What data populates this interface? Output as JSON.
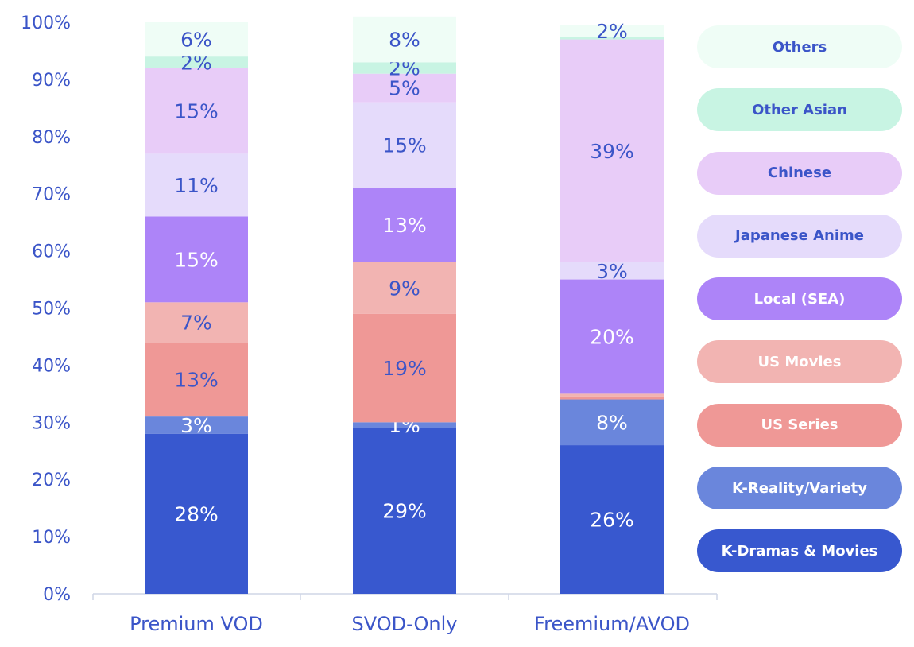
{
  "chart_data": {
    "type": "stacked-bar",
    "categories": [
      "Premium VOD",
      "SVOD-Only",
      "Freemium/AVOD"
    ],
    "ylim": [
      0,
      100
    ],
    "yticks": [
      "0%",
      "10%",
      "20%",
      "30%",
      "40%",
      "50%",
      "60%",
      "70%",
      "80%",
      "90%",
      "100%"
    ],
    "grid": false,
    "legend_placement": "right",
    "series": [
      {
        "name": "K-Dramas & Movies",
        "color": "#3858cf",
        "values": [
          28,
          29,
          26
        ],
        "labels": [
          "28%",
          "29%",
          "26%"
        ]
      },
      {
        "name": "K-Reality/Variety",
        "color": "#6a86dc",
        "values": [
          3,
          1,
          8
        ],
        "labels": [
          "3%",
          "1%",
          "8%"
        ]
      },
      {
        "name": "US Series",
        "color": "#ef9896",
        "values": [
          13,
          19,
          0.5
        ],
        "labels": [
          "13%",
          "19%",
          ""
        ]
      },
      {
        "name": "US Movies",
        "color": "#f2b4b2",
        "values": [
          7,
          9,
          0.5
        ],
        "labels": [
          "7%",
          "9%",
          ""
        ]
      },
      {
        "name": "Local (SEA)",
        "color": "#ad84f8",
        "values": [
          15,
          13,
          20
        ],
        "labels": [
          "15%",
          "13%",
          "20%"
        ]
      },
      {
        "name": "Japanese Anime",
        "color": "#e5dbfb",
        "values": [
          11,
          15,
          3
        ],
        "labels": [
          "11%",
          "15%",
          "3%"
        ]
      },
      {
        "name": "Chinese",
        "color": "#e8ccf8",
        "values": [
          15,
          5,
          39
        ],
        "labels": [
          "15%",
          "5%",
          "39%"
        ]
      },
      {
        "name": "Other Asian",
        "color": "#c8f4e3",
        "values": [
          2,
          2,
          0.5
        ],
        "labels": [
          "2%",
          "2%",
          ""
        ]
      },
      {
        "name": "Others",
        "color": "#effdf6",
        "values": [
          6,
          8,
          2
        ],
        "labels": [
          "6%",
          "8%",
          "2%"
        ]
      }
    ]
  },
  "colors": {
    "axis_text": "#3b55c8",
    "label_dark": "#3b55c8",
    "label_light": "#ffffff",
    "axis_line": "#cfd6e6"
  }
}
